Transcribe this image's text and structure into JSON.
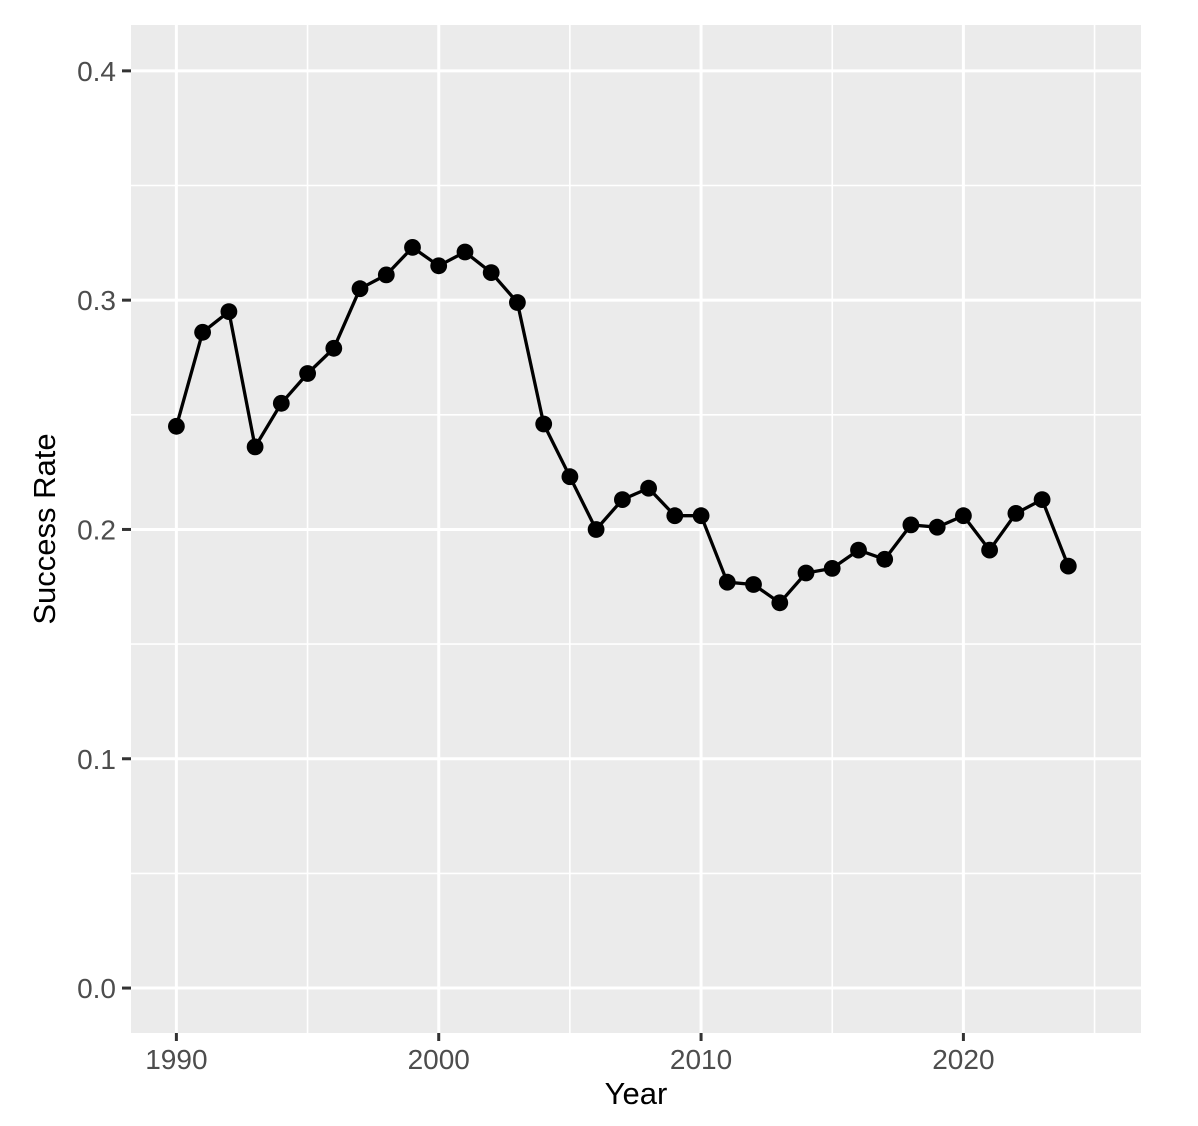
{
  "chart_data": {
    "type": "line",
    "title": "",
    "xlabel": "Year",
    "ylabel": "Success Rate",
    "series": [
      {
        "name": "Success Rate",
        "x": [
          1990,
          1991,
          1992,
          1993,
          1994,
          1995,
          1996,
          1997,
          1998,
          1999,
          2000,
          2001,
          2002,
          2003,
          2004,
          2005,
          2006,
          2007,
          2008,
          2009,
          2010,
          2011,
          2012,
          2013,
          2014,
          2015,
          2016,
          2017,
          2018,
          2019,
          2020,
          2021,
          2022,
          2023,
          2024
        ],
        "values": [
          0.245,
          0.286,
          0.295,
          0.236,
          0.255,
          0.268,
          0.279,
          0.305,
          0.311,
          0.323,
          0.315,
          0.321,
          0.312,
          0.299,
          0.246,
          0.223,
          0.2,
          0.213,
          0.218,
          0.206,
          0.206,
          0.177,
          0.176,
          0.168,
          0.181,
          0.183,
          0.191,
          0.187,
          0.202,
          0.201,
          0.206,
          0.191,
          0.207,
          0.213,
          0.184
        ]
      }
    ],
    "x_major_ticks": [
      1990,
      2000,
      2010,
      2020
    ],
    "x_tick_labels": [
      "1990",
      "2000",
      "2010",
      "2020"
    ],
    "x_minor_ticks": [
      1995,
      2005,
      2015,
      2025
    ],
    "y_major_ticks": [
      0.0,
      0.1,
      0.2,
      0.3,
      0.4
    ],
    "y_tick_labels": [
      "0.0",
      "0.1",
      "0.2",
      "0.3",
      "0.4"
    ],
    "y_minor_ticks": [
      0.05,
      0.15,
      0.25,
      0.35
    ],
    "xlim": [
      1988.27,
      2026.77
    ],
    "ylim": [
      -0.0196,
      0.42
    ],
    "grid": "major-and-minor",
    "legend_position": "none",
    "style": {
      "panel_bg": "#EBEBEB",
      "grid_color": "#FFFFFF",
      "line_color": "#000000",
      "point_color": "#000000",
      "tick_mark_color": "#333333",
      "tick_label_color": "#4D4D4D",
      "axis_title_color": "#000000",
      "outer_bg": "#FFFFFF"
    }
  }
}
